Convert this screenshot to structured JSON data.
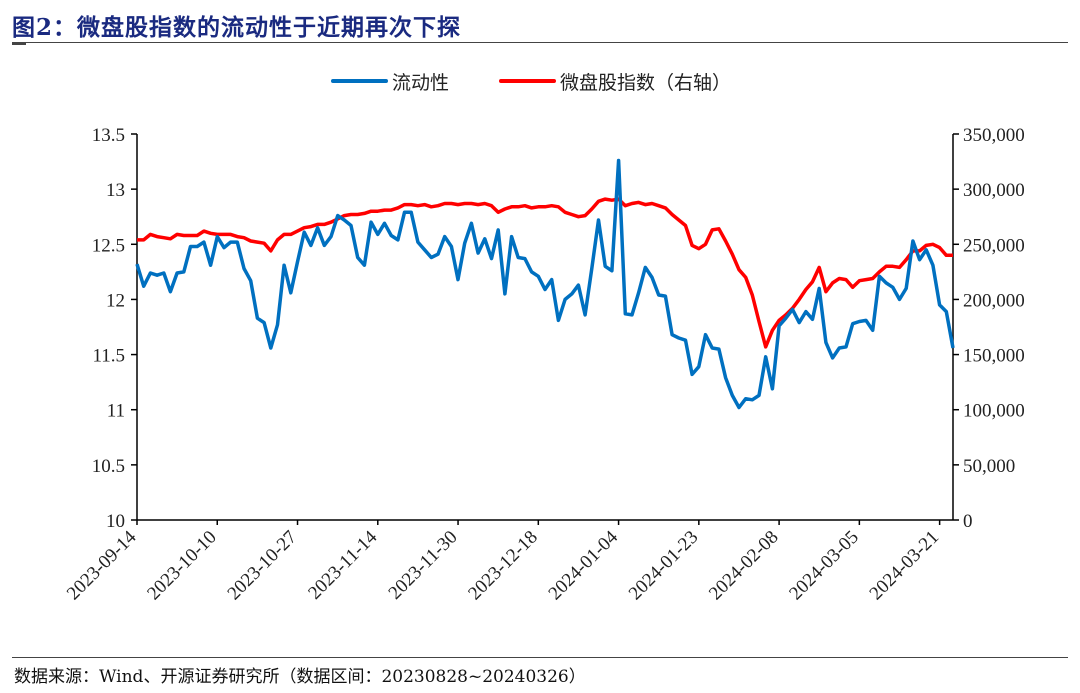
{
  "title": "图2：微盘股指数的流动性于近期再次下探",
  "source": "数据来源：Wind、开源证券研究所（数据区间：20230828~20240326）",
  "colors": {
    "liquidity": "#0070c0",
    "index": "#ff0000",
    "title": "#1a2a80"
  },
  "chart_data": {
    "type": "line",
    "title": "图2：微盘股指数的流动性于近期再次下探",
    "legend": {
      "position": "top-center",
      "entries": [
        "流动性",
        "微盘股指数（右轴）"
      ]
    },
    "x_tick_labels": [
      "2023-09-14",
      "2023-10-10",
      "2023-10-27",
      "2023-11-14",
      "2023-11-30",
      "2023-12-18",
      "2024-01-04",
      "2024-01-23",
      "2024-02-08",
      "2024-03-05",
      "2024-03-21"
    ],
    "x_tick_every": 12,
    "y_left": {
      "min": 10,
      "max": 13.5,
      "ticks": [
        "10",
        "10.5",
        "11",
        "11.5",
        "12",
        "12.5",
        "13",
        "13.5"
      ]
    },
    "y_right": {
      "min": 0,
      "max": 350000,
      "ticks": [
        "0",
        "50,000",
        "100,000",
        "150,000",
        "200,000",
        "250,000",
        "300,000",
        "350,000"
      ]
    },
    "grid": false,
    "series": [
      {
        "name": "流动性",
        "axis": "left",
        "values": [
          12.32,
          12.12,
          12.24,
          12.22,
          12.24,
          12.07,
          12.24,
          12.25,
          12.48,
          12.48,
          12.52,
          12.31,
          12.57,
          12.47,
          12.52,
          12.52,
          12.28,
          12.17,
          11.83,
          11.79,
          11.56,
          11.77,
          12.31,
          12.06,
          12.34,
          12.61,
          12.49,
          12.65,
          12.49,
          12.57,
          12.76,
          12.72,
          12.67,
          12.38,
          12.31,
          12.7,
          12.59,
          12.69,
          12.58,
          12.54,
          12.79,
          12.79,
          12.52,
          12.45,
          12.38,
          12.41,
          12.57,
          12.48,
          12.18,
          12.51,
          12.69,
          12.42,
          12.55,
          12.37,
          12.63,
          12.05,
          12.57,
          12.38,
          12.37,
          12.25,
          12.21,
          12.09,
          12.18,
          11.81,
          12.0,
          12.05,
          12.13,
          11.86,
          12.28,
          12.72,
          12.3,
          12.26,
          13.26,
          11.87,
          11.86,
          12.06,
          12.29,
          12.2,
          12.04,
          12.03,
          11.68,
          11.65,
          11.63,
          11.32,
          11.39,
          11.68,
          11.56,
          11.55,
          11.29,
          11.13,
          11.02,
          11.1,
          11.09,
          11.13,
          11.48,
          11.19,
          11.76,
          11.83,
          11.91,
          11.79,
          11.89,
          11.82,
          12.1,
          11.61,
          11.47,
          11.56,
          11.57,
          11.78,
          11.8,
          11.81,
          11.72,
          12.21,
          12.15,
          12.11,
          12.0,
          12.1,
          12.53,
          12.36,
          12.45,
          12.31,
          11.95,
          11.89,
          11.56
        ]
      },
      {
        "name": "微盘股指数（右轴）",
        "axis": "right",
        "values": [
          254000,
          254000,
          259000,
          257000,
          256000,
          255000,
          259000,
          258000,
          258000,
          258000,
          262000,
          260000,
          259000,
          259000,
          259000,
          257000,
          256000,
          253000,
          252000,
          251000,
          244000,
          254000,
          259000,
          259000,
          262000,
          265000,
          266000,
          268000,
          268000,
          270000,
          273000,
          276000,
          277000,
          277000,
          278000,
          280000,
          280000,
          281000,
          281000,
          283000,
          286000,
          286000,
          285000,
          286000,
          284000,
          285000,
          287000,
          287000,
          286000,
          287000,
          287000,
          286000,
          287000,
          285000,
          279000,
          282000,
          284000,
          284000,
          285000,
          283000,
          284000,
          284000,
          285000,
          284000,
          279000,
          277000,
          275000,
          276000,
          282000,
          289000,
          291000,
          290000,
          291000,
          285000,
          287000,
          288000,
          286000,
          287000,
          285000,
          283000,
          277000,
          272000,
          267000,
          249000,
          246000,
          250000,
          263000,
          264000,
          253000,
          241000,
          227000,
          220000,
          204000,
          180000,
          157000,
          172000,
          181000,
          186000,
          192000,
          200000,
          209000,
          216000,
          229000,
          207000,
          215000,
          219000,
          218000,
          211000,
          217000,
          218000,
          219000,
          225000,
          230000,
          230000,
          229000,
          236000,
          244000,
          244000,
          249000,
          250000,
          247000,
          240000,
          240000
        ]
      }
    ]
  }
}
